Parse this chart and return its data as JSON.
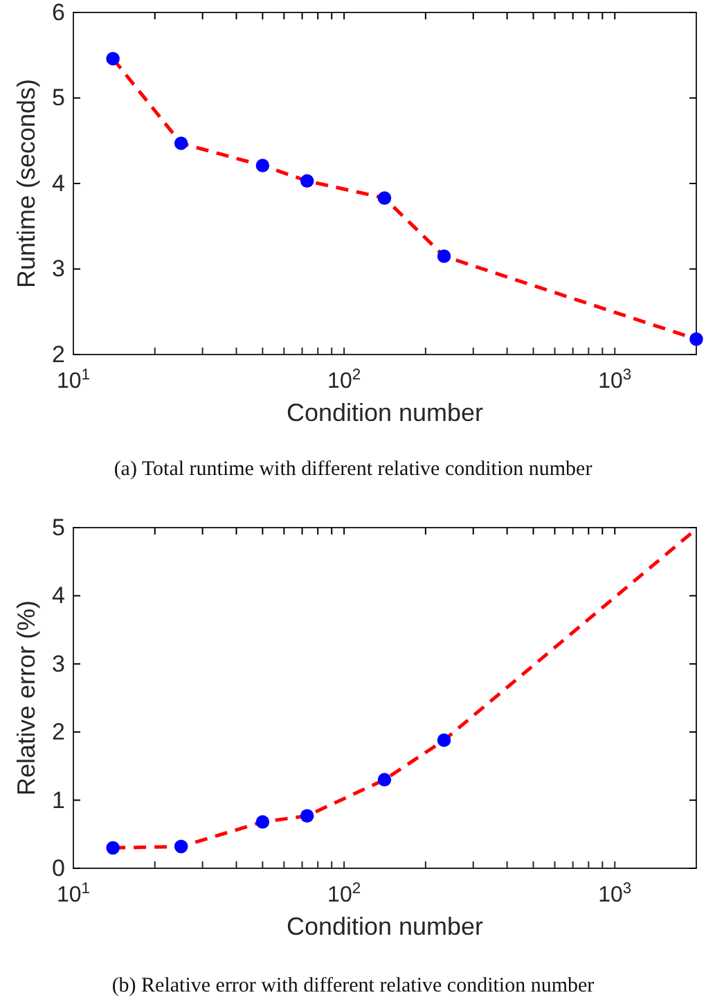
{
  "chart_data": [
    {
      "type": "line",
      "xlabel": "Condition number",
      "ylabel": "Runtime (seconds)",
      "log": "x",
      "xlim": [
        10,
        2000
      ],
      "ylim": [
        2,
        6
      ],
      "xticks": [
        {
          "value": 10,
          "label": "10$^{1}$"
        },
        {
          "value": 20,
          "label": null
        },
        {
          "value": 30,
          "label": null
        },
        {
          "value": 40,
          "label": null
        },
        {
          "value": 50,
          "label": null
        },
        {
          "value": 60,
          "label": null
        },
        {
          "value": 70,
          "label": null
        },
        {
          "value": 80,
          "label": null
        },
        {
          "value": 90,
          "label": null
        },
        {
          "value": 100,
          "label": "10$^{2}$"
        },
        {
          "value": 200,
          "label": null
        },
        {
          "value": 300,
          "label": null
        },
        {
          "value": 400,
          "label": null
        },
        {
          "value": 500,
          "label": null
        },
        {
          "value": 600,
          "label": null
        },
        {
          "value": 700,
          "label": null
        },
        {
          "value": 800,
          "label": null
        },
        {
          "value": 900,
          "label": null
        },
        {
          "value": 1000,
          "label": "10$^{3}$"
        }
      ],
      "yticks": [
        2,
        3,
        4,
        5,
        6
      ],
      "grid": false,
      "x": [
        14,
        25,
        50,
        73,
        141,
        234,
        2000
      ],
      "series": [
        {
          "color": "#ff0000",
          "line_style": "dashed",
          "marker": "none",
          "values": [
            5.46,
            4.47,
            4.21,
            4.03,
            3.83,
            3.15,
            2.18
          ]
        },
        {
          "type": "scatter",
          "color": "#0000ff",
          "marker": "circle",
          "values": [
            5.46,
            4.47,
            4.21,
            4.03,
            3.83,
            3.15,
            2.18
          ]
        }
      ],
      "annotations": [
        "(a)  Total runtime with different relative condition number"
      ]
    },
    {
      "type": "line",
      "xlabel": "Condition number",
      "ylabel": "Relative error (%)",
      "log": "x",
      "xlim": [
        10,
        2000
      ],
      "ylim": [
        0,
        5
      ],
      "xticks": [
        {
          "value": 10,
          "label": "10$^{1}$"
        },
        {
          "value": 20,
          "label": null
        },
        {
          "value": 30,
          "label": null
        },
        {
          "value": 40,
          "label": null
        },
        {
          "value": 50,
          "label": null
        },
        {
          "value": 60,
          "label": null
        },
        {
          "value": 70,
          "label": null
        },
        {
          "value": 80,
          "label": null
        },
        {
          "value": 90,
          "label": null
        },
        {
          "value": 100,
          "label": "10$^{2}$"
        },
        {
          "value": 200,
          "label": null
        },
        {
          "value": 300,
          "label": null
        },
        {
          "value": 400,
          "label": null
        },
        {
          "value": 500,
          "label": null
        },
        {
          "value": 600,
          "label": null
        },
        {
          "value": 700,
          "label": null
        },
        {
          "value": 800,
          "label": null
        },
        {
          "value": 900,
          "label": null
        },
        {
          "value": 1000,
          "label": "10$^{3}$"
        }
      ],
      "yticks": [
        0,
        1,
        2,
        3,
        4,
        5
      ],
      "grid": false,
      "x": [
        14,
        25,
        50,
        73,
        141,
        234,
        2000
      ],
      "series": [
        {
          "color": "#ff0000",
          "line_style": "dashed",
          "marker": "none",
          "values": [
            0.3,
            0.32,
            0.68,
            0.77,
            1.3,
            1.88,
            4.98
          ]
        },
        {
          "type": "scatter",
          "color": "#0000ff",
          "marker": "circle",
          "values": [
            0.3,
            0.32,
            0.68,
            0.77,
            1.3,
            1.88,
            null
          ]
        }
      ],
      "annotations": [
        "(b)  Relative error with different relative condition number"
      ]
    }
  ]
}
